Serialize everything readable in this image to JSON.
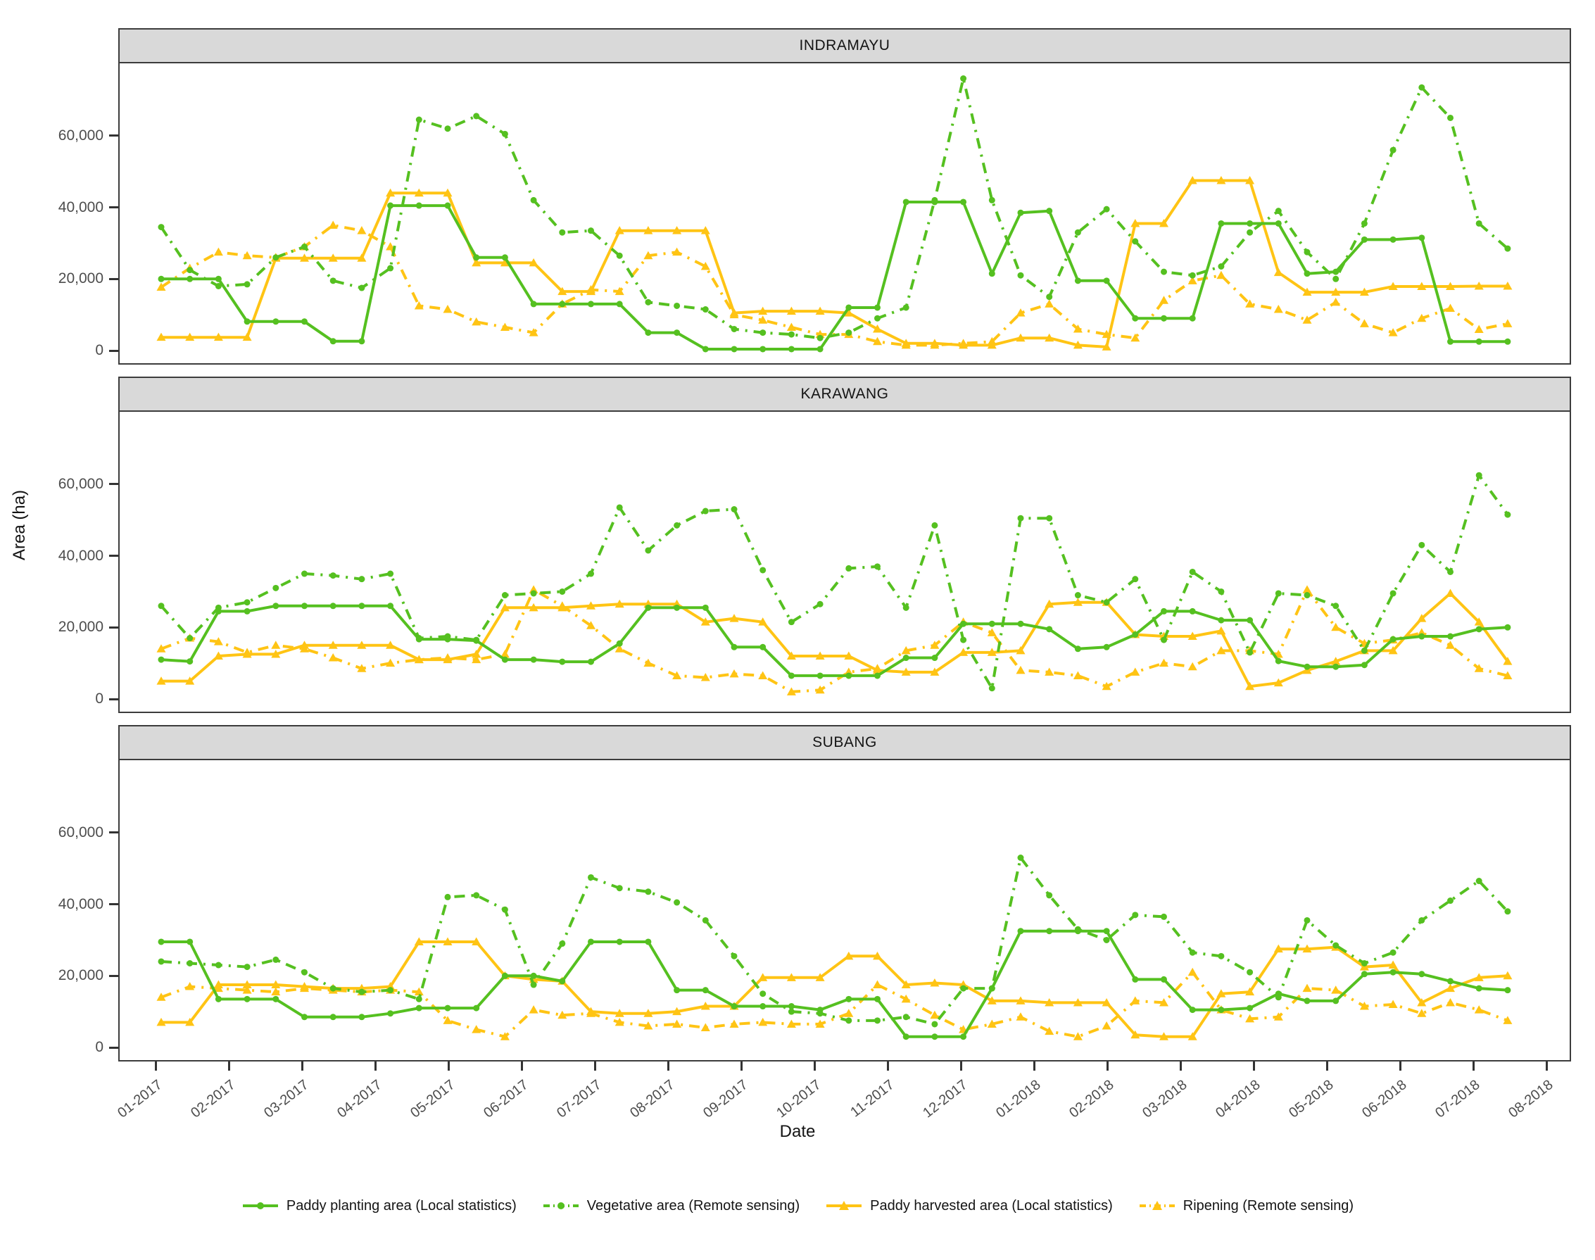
{
  "chart_data": {
    "type": "line",
    "xlabel": "Date",
    "ylabel": "Area (ha)",
    "legend_position": "bottom",
    "grid": "off",
    "colors": {
      "green": "#55C020",
      "yellow": "#FFC414",
      "strip_bg": "#d9d9d9",
      "border": "#3c3c3c",
      "tick_text": "#4d4d4d"
    },
    "x_axis": {
      "tick_labels": [
        "01-2017",
        "02-2017",
        "03-2017",
        "04-2017",
        "05-2017",
        "06-2017",
        "07-2017",
        "08-2017",
        "09-2017",
        "10-2017",
        "11-2017",
        "12-2017",
        "01-2018",
        "02-2018",
        "03-2018",
        "04-2018",
        "05-2018",
        "06-2018",
        "07-2018",
        "08-2018"
      ],
      "start_month": 0.06,
      "step_month": 0.3913,
      "n_points": 48
    },
    "y_axis": {
      "tick_labels": [
        "0",
        "20,000",
        "40,000",
        "60,000"
      ],
      "tick_values": [
        0,
        20000,
        40000,
        60000
      ],
      "ylim": [
        0,
        80000
      ]
    },
    "series_meta": [
      {
        "key": "planting",
        "label": "Paddy planting area (Local statistics)",
        "color": "#55C020",
        "dash": "solid",
        "marker": "circle"
      },
      {
        "key": "vegetative",
        "label": "Vegetative area (Remote sensing)",
        "color": "#55C020",
        "dash": "dashdot",
        "marker": "circle"
      },
      {
        "key": "harvested",
        "label": "Paddy harvested  area (Local statistics)",
        "color": "#FFC414",
        "dash": "solid",
        "marker": "triangle"
      },
      {
        "key": "ripening",
        "label": "Ripening (Remote sensing)",
        "color": "#FFC414",
        "dash": "dashdot",
        "marker": "triangle"
      }
    ],
    "facets": [
      {
        "title": "INDRAMAYU",
        "series": {
          "planting": [
            20000,
            20000,
            20000,
            8100,
            8100,
            8100,
            2600,
            2600,
            40500,
            40500,
            40500,
            26000,
            26000,
            13000,
            13000,
            13000,
            13000,
            5000,
            5000,
            400,
            400,
            400,
            400,
            400,
            12000,
            12000,
            41500,
            41500,
            41500,
            21500,
            38500,
            39000,
            19500,
            19500,
            9000,
            9000,
            9000,
            35500,
            35500,
            35500,
            21500,
            22000,
            31000,
            31000,
            31500,
            2500,
            2500,
            2500
          ],
          "vegetative": [
            34500,
            22500,
            18000,
            18500,
            26000,
            29000,
            19500,
            17500,
            23000,
            64500,
            62000,
            65500,
            60500,
            42000,
            33000,
            33500,
            26500,
            13500,
            12500,
            11500,
            6000,
            5000,
            4500,
            3500,
            5000,
            9000,
            12000,
            42000,
            76000,
            42000,
            21000,
            15000,
            33000,
            39500,
            30500,
            22000,
            21000,
            23500,
            33000,
            39000,
            27500,
            20000,
            35500,
            56000,
            73500,
            65000,
            35500,
            28500
          ],
          "harvested": [
            3700,
            3700,
            3700,
            3700,
            25800,
            25800,
            25800,
            25800,
            44000,
            44000,
            44000,
            24500,
            24500,
            24500,
            16500,
            16500,
            33500,
            33500,
            33500,
            33500,
            10500,
            11000,
            11000,
            11000,
            10500,
            6000,
            2000,
            2000,
            1500,
            1500,
            3500,
            3500,
            1500,
            1000,
            35500,
            35500,
            47500,
            47500,
            47500,
            21800,
            16300,
            16300,
            16300,
            17900,
            17900,
            17900,
            18000,
            18000
          ],
          "ripening": [
            17700,
            23000,
            27500,
            26500,
            26000,
            29000,
            35000,
            33500,
            29000,
            12500,
            11500,
            8000,
            6500,
            5000,
            13000,
            17000,
            16500,
            26500,
            27500,
            23500,
            10000,
            8500,
            6500,
            4500,
            4500,
            2500,
            1500,
            1500,
            2000,
            2500,
            10500,
            13000,
            6000,
            4500,
            3500,
            14000,
            19500,
            21000,
            13000,
            11500,
            8500,
            13500,
            7500,
            5000,
            9000,
            11800,
            5900,
            7500
          ]
        }
      },
      {
        "title": "KARAWANG",
        "series": {
          "planting": [
            11000,
            10500,
            24500,
            24500,
            26000,
            26000,
            26000,
            26000,
            26000,
            16700,
            16700,
            16300,
            11000,
            11000,
            10400,
            10400,
            15500,
            25500,
            25500,
            25500,
            14500,
            14500,
            6500,
            6500,
            6500,
            6500,
            11500,
            11500,
            21000,
            21000,
            21000,
            19500,
            14000,
            14500,
            18000,
            24500,
            24500,
            22000,
            22000,
            10600,
            9000,
            9000,
            9500,
            16700,
            17500,
            17500,
            19500,
            20000
          ],
          "vegetative": [
            26000,
            17000,
            25500,
            27000,
            31000,
            35000,
            34500,
            33500,
            35000,
            17000,
            17500,
            16500,
            29000,
            29500,
            30000,
            35000,
            53500,
            41500,
            48500,
            52500,
            53000,
            36000,
            21500,
            26500,
            36500,
            37000,
            25500,
            48500,
            16500,
            3000,
            50500,
            50500,
            29000,
            27000,
            33500,
            16500,
            35500,
            30000,
            13000,
            29500,
            29000,
            26000,
            13500,
            29500,
            43000,
            35500,
            62500,
            51500
          ],
          "harvested": [
            5000,
            5000,
            12000,
            12500,
            12500,
            15000,
            15000,
            15000,
            15000,
            11000,
            11000,
            12500,
            25500,
            25500,
            25500,
            26000,
            26500,
            26500,
            26500,
            21500,
            22500,
            21500,
            12000,
            12000,
            12000,
            8000,
            7500,
            7500,
            13000,
            13000,
            13500,
            26500,
            27000,
            27000,
            18000,
            17500,
            17500,
            19000,
            3500,
            4500,
            8000,
            10500,
            13500,
            13500,
            22500,
            29500,
            21500,
            10500
          ],
          "ripening": [
            14000,
            17000,
            16000,
            13000,
            15000,
            14000,
            11500,
            8500,
            10000,
            11000,
            11500,
            11000,
            12500,
            30500,
            26000,
            20500,
            14000,
            10000,
            6500,
            6000,
            7000,
            6500,
            2000,
            2500,
            7500,
            8500,
            13500,
            15000,
            21500,
            18500,
            8000,
            7500,
            6500,
            3500,
            7500,
            10000,
            9000,
            13500,
            13500,
            12500,
            30500,
            20000,
            15500,
            16500,
            18500,
            15000,
            8500,
            6500
          ]
        }
      },
      {
        "title": "SUBANG",
        "series": {
          "planting": [
            29500,
            29500,
            13500,
            13500,
            13500,
            8500,
            8500,
            8500,
            9500,
            11000,
            11000,
            11000,
            20000,
            20000,
            18500,
            29500,
            29500,
            29500,
            16000,
            16000,
            11500,
            11500,
            11500,
            10500,
            13500,
            13500,
            3000,
            3000,
            3000,
            16500,
            32500,
            32500,
            32500,
            32500,
            19000,
            19000,
            10500,
            10500,
            11000,
            15000,
            13000,
            13000,
            20500,
            21000,
            20500,
            18500,
            16500,
            16000
          ],
          "vegetative": [
            24000,
            23500,
            23000,
            22500,
            24500,
            21000,
            16500,
            15500,
            16000,
            13500,
            42000,
            42500,
            38500,
            17500,
            29000,
            47500,
            44500,
            43500,
            40500,
            35500,
            25500,
            15000,
            10000,
            9500,
            7500,
            7500,
            8500,
            6500,
            16500,
            16500,
            53000,
            42500,
            33000,
            30000,
            37000,
            36500,
            26500,
            25500,
            21000,
            14000,
            35500,
            28500,
            23500,
            26500,
            35500,
            41000,
            46500,
            38000
          ],
          "harvested": [
            7000,
            7000,
            17500,
            17500,
            17500,
            17000,
            16500,
            16500,
            17000,
            29500,
            29500,
            29500,
            20000,
            19000,
            18500,
            10000,
            9500,
            9500,
            10000,
            11500,
            11500,
            19500,
            19500,
            19500,
            25500,
            25500,
            17500,
            18000,
            17500,
            13000,
            13000,
            12500,
            12500,
            12500,
            3500,
            3000,
            3000,
            15000,
            15500,
            27500,
            27500,
            28000,
            22500,
            23000,
            12500,
            16500,
            19500,
            20000
          ],
          "ripening": [
            14000,
            17000,
            16500,
            16000,
            15500,
            16500,
            16000,
            15500,
            16000,
            15500,
            7500,
            5000,
            3000,
            10500,
            9000,
            9500,
            7000,
            6000,
            6500,
            5500,
            6500,
            7000,
            6500,
            6500,
            9500,
            17500,
            13500,
            9000,
            5000,
            6500,
            8500,
            4500,
            3000,
            6000,
            13000,
            12500,
            21000,
            10500,
            8000,
            8500,
            16500,
            16000,
            11500,
            12000,
            9500,
            12500,
            10500,
            7500
          ]
        }
      }
    ]
  }
}
